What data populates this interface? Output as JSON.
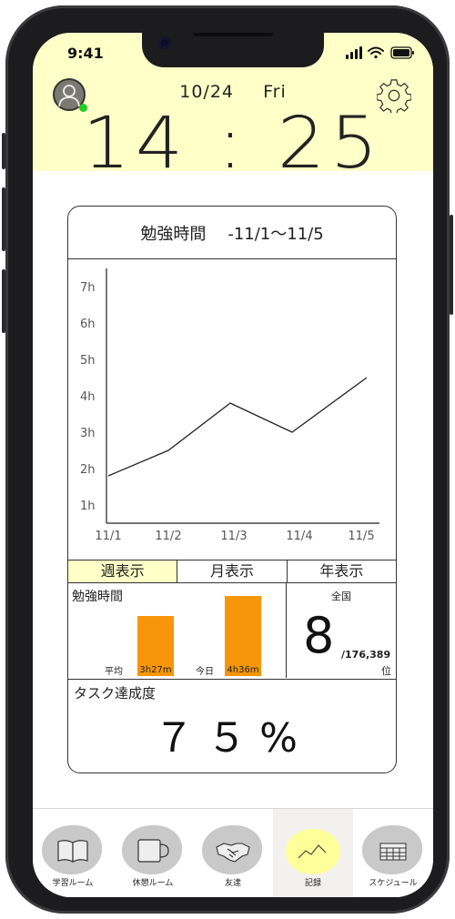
{
  "status_bar": {
    "time": "9:41"
  },
  "header": {
    "date": "10/24",
    "weekday": "Fri",
    "clock": "14 : 25"
  },
  "card": {
    "title": "勉強時間",
    "period": "-11/1〜11/5"
  },
  "chart_data": {
    "type": "line",
    "categories": [
      "11/1",
      "11/2",
      "11/3",
      "11/4",
      "11/5"
    ],
    "values": [
      1.8,
      2.5,
      3.8,
      3.0,
      4.5
    ],
    "y_tick_labels": [
      "1h",
      "2h",
      "3h",
      "4h",
      "5h",
      "6h",
      "7h"
    ],
    "ylim": [
      0.5,
      7.5
    ],
    "grid": false
  },
  "tabs": [
    {
      "label": "週表示",
      "active": true
    },
    {
      "label": "月表示",
      "active": false
    },
    {
      "label": "年表示",
      "active": false
    }
  ],
  "study_time": {
    "label": "勉強時間",
    "bars": [
      {
        "category": "平均",
        "value_label": "3h27m",
        "value_minutes": 207
      },
      {
        "category": "今日",
        "value_label": "4h36m",
        "value_minutes": 276
      }
    ],
    "bar_color": "#f7960a"
  },
  "ranking": {
    "scope": "全国",
    "rank": "8",
    "total": "/176,389",
    "unit": "位"
  },
  "task": {
    "label": "タスク達成度",
    "value": "７５%"
  },
  "nav": [
    {
      "label": "学習ルーム",
      "icon": "book-icon",
      "active": false
    },
    {
      "label": "休憩ルーム",
      "icon": "mug-icon",
      "active": false
    },
    {
      "label": "友達",
      "icon": "handshake-icon",
      "active": false
    },
    {
      "label": "記録",
      "icon": "chart-line-icon",
      "active": true
    },
    {
      "label": "スケジュール",
      "icon": "calendar-icon",
      "active": false
    }
  ],
  "colors": {
    "header_bg": "#ffffc8",
    "accent": "#f7960a",
    "active_nav": "#ffff99",
    "online": "#22cc22"
  }
}
